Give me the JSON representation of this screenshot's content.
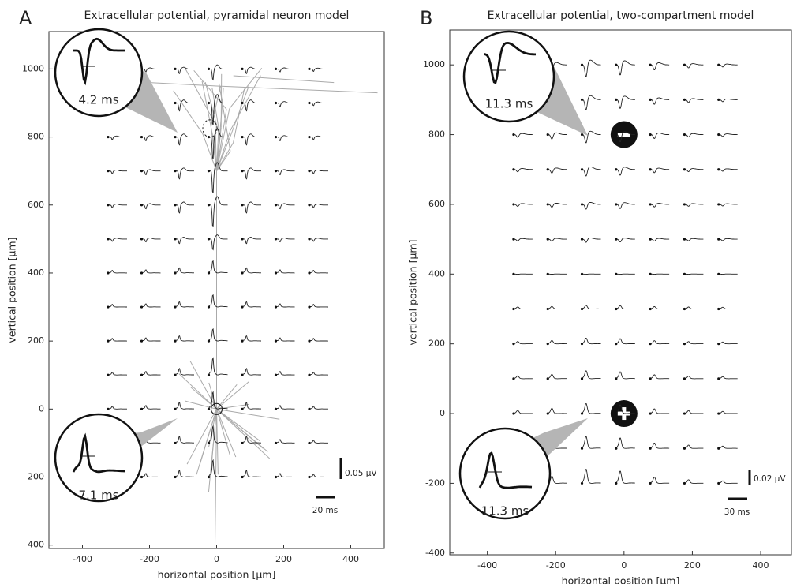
{
  "chart_data": [
    {
      "type": "waveform-grid",
      "panel_label": "A",
      "title": "Extracellular potential, pyramidal neuron model",
      "xlabel": "horizontal position [μm]",
      "ylabel": "vertical position [μm]",
      "xlim": [
        -500,
        500
      ],
      "ylim": [
        -410,
        1110
      ],
      "xticks": [
        -400,
        -200,
        0,
        200,
        400
      ],
      "yticks": [
        -400,
        -200,
        0,
        200,
        400,
        600,
        800,
        1000
      ],
      "electrode_x": [
        -300,
        -200,
        -100,
        0,
        100,
        200,
        300
      ],
      "electrode_y": [
        -200,
        -100,
        0,
        100,
        200,
        300,
        400,
        500,
        600,
        700,
        800,
        900,
        1000
      ],
      "insets": [
        {
          "label": "4.2 ms"
        },
        {
          "label": "7.1 ms"
        }
      ],
      "scale_bars": {
        "voltage": "0.05 μV",
        "time": "20 ms"
      }
    },
    {
      "type": "waveform-grid",
      "panel_label": "B",
      "title": "Extracellular potential, two-compartment model",
      "xlabel": "horizontal position [μm]",
      "ylabel": "vertical position [μm]",
      "xlim": [
        -510,
        490
      ],
      "ylim": [
        -405,
        1100
      ],
      "xticks": [
        -400,
        -200,
        0,
        200,
        400
      ],
      "yticks": [
        -400,
        -200,
        0,
        200,
        400,
        600,
        800,
        1000
      ],
      "electrode_x": [
        -300,
        -200,
        -100,
        0,
        100,
        200,
        300
      ],
      "electrode_y": [
        -200,
        -100,
        0,
        100,
        200,
        300,
        400,
        500,
        600,
        700,
        800,
        900,
        1000
      ],
      "insets": [
        {
          "label": "11.3 ms"
        },
        {
          "label": "11.3 ms"
        }
      ],
      "scale_bars": {
        "voltage": "0.02 μV",
        "time": "30 ms"
      }
    }
  ]
}
